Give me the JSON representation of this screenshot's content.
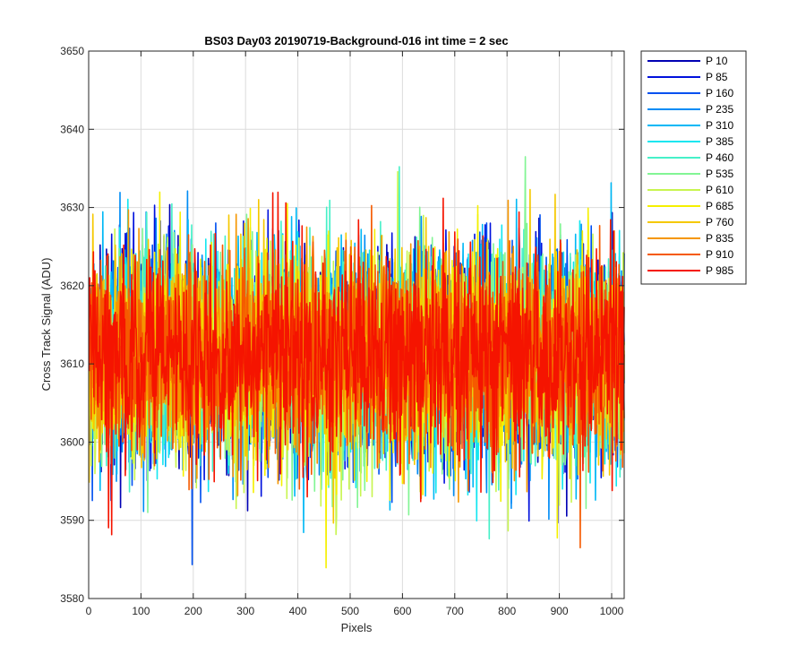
{
  "chart_data": {
    "type": "line",
    "title": "BS03 Day03 20190719-Background-016 int time = 2 sec",
    "xlabel": "Pixels",
    "ylabel": "Cross Track Signal (ADU)",
    "xlim": [
      0,
      1024
    ],
    "ylim": [
      3580,
      3650
    ],
    "x_ticks": [
      0,
      100,
      200,
      300,
      400,
      500,
      600,
      700,
      800,
      900,
      1000
    ],
    "y_ticks": [
      3580,
      3590,
      3600,
      3610,
      3620,
      3630,
      3640,
      3650
    ],
    "grid": true,
    "legend_position": "outside-top-right",
    "x": "1..1024 (every pixel)",
    "series_stats": {
      "mean": 3611,
      "std": 6.5,
      "min": 3581,
      "max": 3643
    },
    "series": [
      {
        "name": "P 10",
        "color": "#0000b4"
      },
      {
        "name": "P 85",
        "color": "#0011dd"
      },
      {
        "name": "P 160",
        "color": "#0050f0"
      },
      {
        "name": "P 235",
        "color": "#008cf5"
      },
      {
        "name": "P 310",
        "color": "#00b8f5"
      },
      {
        "name": "P 385",
        "color": "#14e6f0"
      },
      {
        "name": "P 460",
        "color": "#46f0c8"
      },
      {
        "name": "P 535",
        "color": "#82f594"
      },
      {
        "name": "P 610",
        "color": "#c8f550"
      },
      {
        "name": "P 685",
        "color": "#f5f000"
      },
      {
        "name": "P 760",
        "color": "#f5c800"
      },
      {
        "name": "P 835",
        "color": "#f59600"
      },
      {
        "name": "P 910",
        "color": "#f55a00"
      },
      {
        "name": "P 985",
        "color": "#f51400"
      }
    ]
  }
}
